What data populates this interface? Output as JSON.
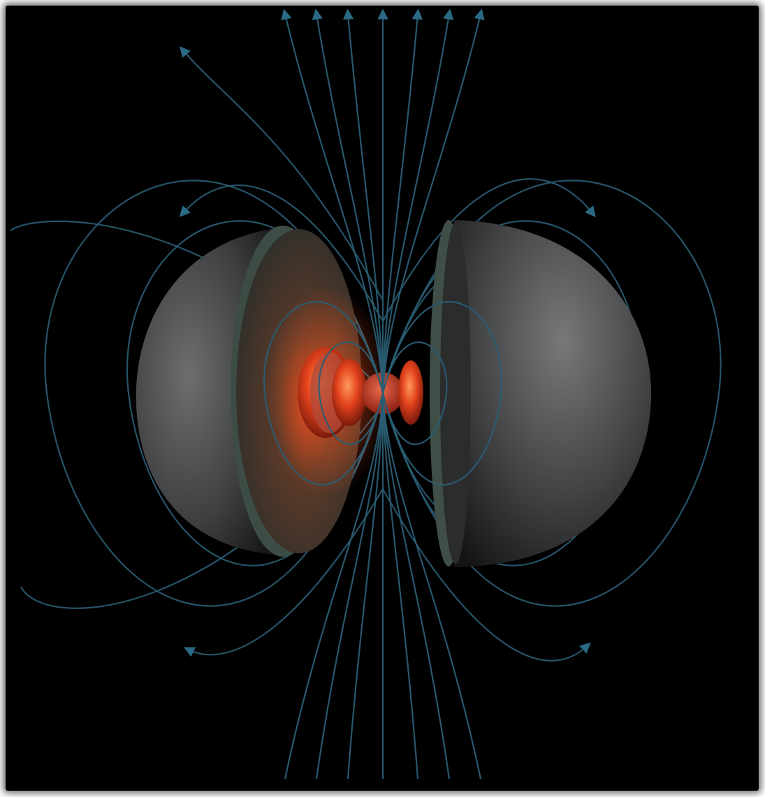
{
  "colors": {
    "background": "#000000",
    "field_line": "#2a5d73",
    "moon_surface": "#4a4b4d",
    "crust_edge": "#42524a",
    "mantle": "#3a3530",
    "core_glow": "#e8421c",
    "inner_core": "#c93a22"
  },
  "icons": {
    "arrow": "arrowhead-icon"
  }
}
